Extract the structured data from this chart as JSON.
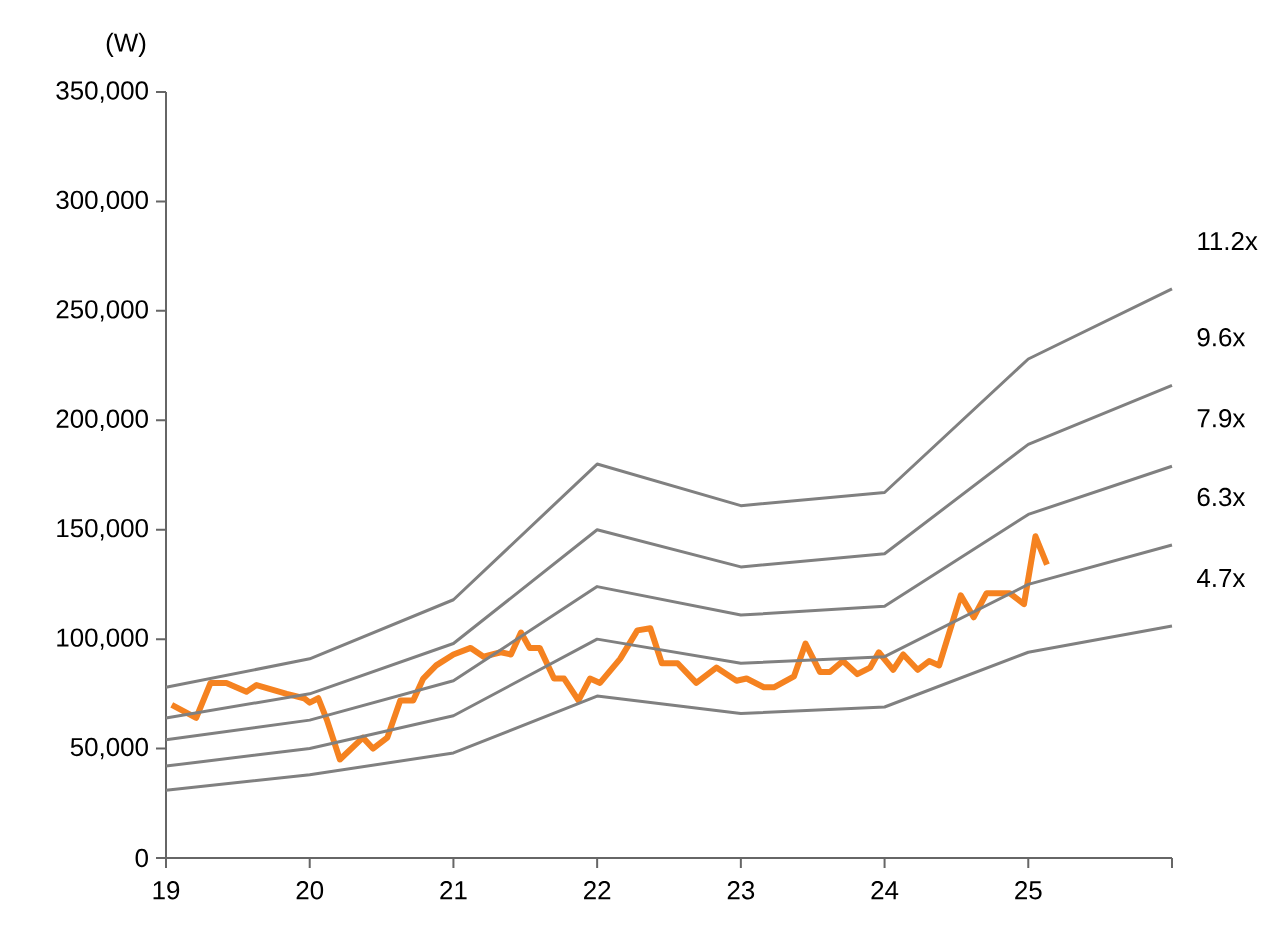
{
  "chart_data": {
    "type": "line",
    "ylabel": "(W)",
    "xlim": [
      19,
      26
    ],
    "ylim": [
      0,
      350000
    ],
    "xticks": [
      19,
      20,
      21,
      22,
      23,
      24,
      25,
      {
        "value": 26,
        "label": null
      }
    ],
    "yticks": [
      0,
      {
        "value": 50000,
        "label": "50,000"
      },
      {
        "value": 100000,
        "label": "100,000"
      },
      {
        "value": 150000,
        "label": "150,000"
      },
      {
        "value": 200000,
        "label": "200,000"
      },
      {
        "value": 250000,
        "label": "250,000"
      },
      {
        "value": 300000,
        "label": "300,000"
      },
      {
        "value": 350000,
        "label": "350,000"
      }
    ],
    "grid": false,
    "legend": false,
    "marker": "none",
    "line_style": "solid",
    "series": [
      {
        "color": "#f58220",
        "x": [
          19.04,
          19.21,
          19.31,
          19.42,
          19.56,
          19.63,
          19.84,
          19.96,
          20.0,
          20.06,
          20.12,
          20.21,
          20.37,
          20.44,
          20.54,
          20.63,
          20.72,
          20.79,
          20.88,
          21.0,
          21.12,
          21.21,
          21.33,
          21.4,
          21.47,
          21.53,
          21.6,
          21.7,
          21.77,
          21.87,
          21.95,
          22.02,
          22.16,
          22.28,
          22.37,
          22.45,
          22.56,
          22.69,
          22.83,
          22.97,
          23.04,
          23.16,
          23.23,
          23.37,
          23.45,
          23.55,
          23.62,
          23.71,
          23.81,
          23.9,
          23.96,
          24.06,
          24.13,
          24.23,
          24.31,
          24.38,
          24.53,
          24.62,
          24.71,
          24.87,
          24.97,
          25.05,
          25.13
        ],
        "values": [
          70000,
          64000,
          80000,
          80000,
          76000,
          79000,
          75000,
          73000,
          71000,
          73000,
          63000,
          45000,
          55000,
          50000,
          55000,
          72000,
          72000,
          82000,
          88000,
          93000,
          96000,
          92000,
          94000,
          93000,
          103000,
          96000,
          96000,
          82000,
          82000,
          72000,
          82000,
          80000,
          91000,
          104000,
          105000,
          89000,
          89000,
          80000,
          87000,
          81000,
          82000,
          78000,
          78000,
          83000,
          98000,
          85000,
          85000,
          90000,
          84000,
          87000,
          94000,
          86000,
          93000,
          86000,
          90000,
          88000,
          120000,
          110000,
          121000,
          121000,
          116000,
          147000,
          134000
        ]
      },
      {
        "name": "11.2x",
        "color": "#808080",
        "x": [
          19,
          20,
          21,
          22,
          23,
          24,
          25,
          26
        ],
        "values": [
          78000,
          91000,
          118000,
          180000,
          161000,
          167000,
          228000,
          260000
        ]
      },
      {
        "name": "9.6x",
        "color": "#808080",
        "x": [
          19,
          20,
          21,
          22,
          23,
          24,
          25,
          26
        ],
        "values": [
          64000,
          75000,
          98000,
          150000,
          133000,
          139000,
          189000,
          216000
        ]
      },
      {
        "name": "7.9x",
        "color": "#808080",
        "x": [
          19,
          20,
          21,
          22,
          23,
          24,
          25,
          26
        ],
        "values": [
          54000,
          63000,
          81000,
          124000,
          111000,
          115000,
          157000,
          179000
        ]
      },
      {
        "name": "6.3x",
        "color": "#808080",
        "x": [
          19,
          20,
          21,
          22,
          23,
          24,
          25,
          26
        ],
        "values": [
          42000,
          50000,
          65000,
          100000,
          89000,
          92000,
          125000,
          143000
        ]
      },
      {
        "name": "4.7x",
        "color": "#808080",
        "x": [
          19,
          20,
          21,
          22,
          23,
          24,
          25,
          26
        ],
        "values": [
          31000,
          38000,
          48000,
          74000,
          66000,
          69000,
          94000,
          106000
        ]
      }
    ]
  }
}
